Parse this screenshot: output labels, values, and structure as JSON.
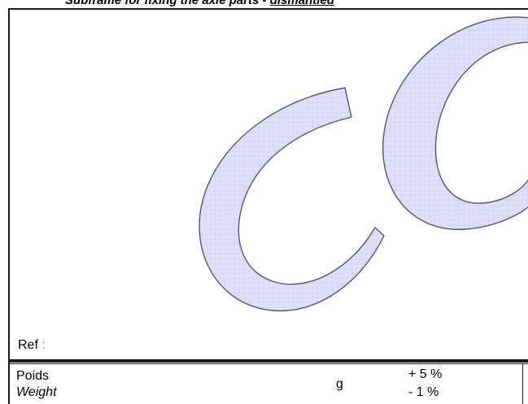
{
  "header": {
    "subtitle_prefix": "Subframe for fixing the axle parts - ",
    "subtitle_underlined": "dismantled"
  },
  "watermark": {
    "text": "CO",
    "fill": "#dcdcf8",
    "stroke": "#555566"
  },
  "ref": {
    "label": "Ref",
    "colon": " :"
  },
  "weight_row": {
    "label_fr": "Poids",
    "label_en": "Weight",
    "unit": "g",
    "tolerance_plus": "+ 5 %",
    "tolerance_minus": "- 1 %"
  }
}
